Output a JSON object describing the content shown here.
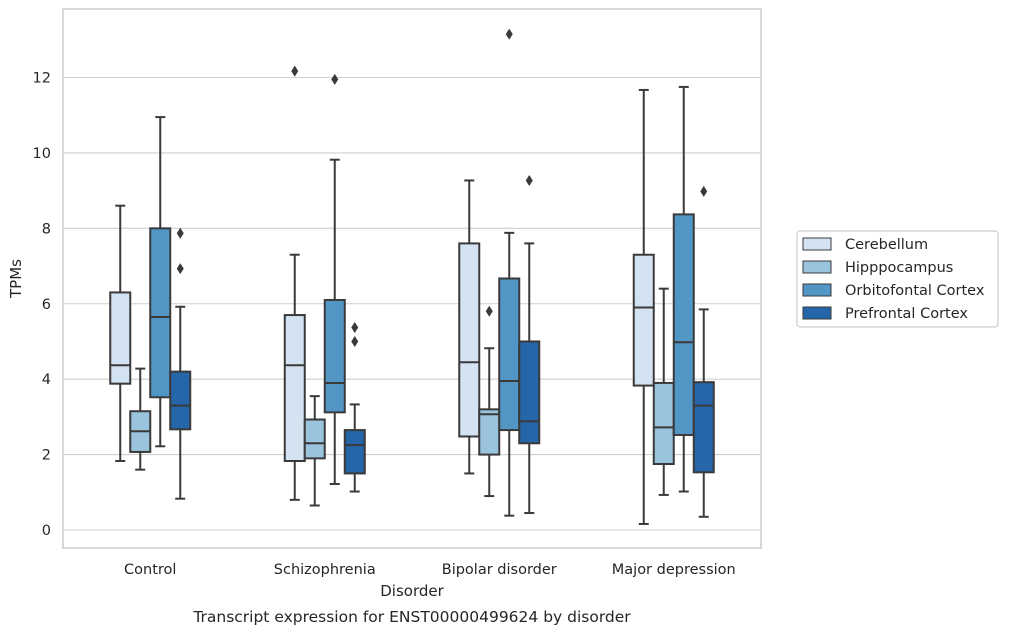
{
  "chart_data": {
    "type": "box",
    "title": "Transcript expression for ENST00000499624 by disorder",
    "xlabel": "Disorder",
    "ylabel": "TPMs",
    "ylim": [
      -0.45,
      13.8
    ],
    "yticks": [
      0,
      2,
      4,
      6,
      8,
      10,
      12
    ],
    "grid": true,
    "legend_position": "right-outside",
    "categories": [
      "Control",
      "Schizophrenia",
      "Bipolar disorder",
      "Major depression"
    ],
    "series": [
      {
        "name": "Cerebellum",
        "color": "#d4e3f2",
        "boxes": [
          {
            "whislo": 1.83,
            "q1": 3.88,
            "med": 4.37,
            "q3": 6.3,
            "whishi": 8.6,
            "fliers": []
          },
          {
            "whislo": 0.8,
            "q1": 1.83,
            "med": 4.37,
            "q3": 5.7,
            "whishi": 7.3,
            "fliers": [
              12.17
            ]
          },
          {
            "whislo": 1.5,
            "q1": 2.48,
            "med": 4.45,
            "q3": 7.6,
            "whishi": 9.27,
            "fliers": []
          },
          {
            "whislo": 0.16,
            "q1": 3.83,
            "med": 5.9,
            "q3": 7.3,
            "whishi": 11.67,
            "fliers": []
          }
        ]
      },
      {
        "name": "Hipppocampus",
        "color": "#9ac3de",
        "boxes": [
          {
            "whislo": 1.6,
            "q1": 2.07,
            "med": 2.62,
            "q3": 3.15,
            "whishi": 4.28,
            "fliers": []
          },
          {
            "whislo": 0.65,
            "q1": 1.9,
            "med": 2.3,
            "q3": 2.93,
            "whishi": 3.55,
            "fliers": []
          },
          {
            "whislo": 0.9,
            "q1": 2.0,
            "med": 3.07,
            "q3": 3.2,
            "whishi": 4.82,
            "fliers": [
              5.8
            ]
          },
          {
            "whislo": 0.93,
            "q1": 1.75,
            "med": 2.72,
            "q3": 3.9,
            "whishi": 6.4,
            "fliers": []
          }
        ]
      },
      {
        "name": "Orbitofontal Cortex",
        "color": "#5296c6",
        "boxes": [
          {
            "whislo": 2.22,
            "q1": 3.52,
            "med": 5.65,
            "q3": 8.0,
            "whishi": 10.95,
            "fliers": []
          },
          {
            "whislo": 1.22,
            "q1": 3.12,
            "med": 3.9,
            "q3": 6.1,
            "whishi": 9.82,
            "fliers": [
              11.95
            ]
          },
          {
            "whislo": 0.38,
            "q1": 2.65,
            "med": 3.95,
            "q3": 6.67,
            "whishi": 7.88,
            "fliers": [
              13.15
            ]
          },
          {
            "whislo": 1.02,
            "q1": 2.52,
            "med": 4.98,
            "q3": 8.37,
            "whishi": 11.75,
            "fliers": []
          }
        ]
      },
      {
        "name": "Prefrontal Cortex",
        "color": "#2566a8",
        "boxes": [
          {
            "whislo": 0.83,
            "q1": 2.67,
            "med": 3.3,
            "q3": 4.2,
            "whishi": 5.92,
            "fliers": [
              6.93,
              7.87
            ]
          },
          {
            "whislo": 1.02,
            "q1": 1.5,
            "med": 2.25,
            "q3": 2.65,
            "whishi": 3.33,
            "fliers": [
              5.0,
              5.37
            ]
          },
          {
            "whislo": 0.45,
            "q1": 2.3,
            "med": 2.88,
            "q3": 5.0,
            "whishi": 7.6,
            "fliers": [
              9.27
            ]
          },
          {
            "whislo": 0.35,
            "q1": 1.53,
            "med": 3.3,
            "q3": 3.92,
            "whishi": 5.85,
            "fliers": [
              8.98
            ]
          }
        ]
      }
    ]
  }
}
